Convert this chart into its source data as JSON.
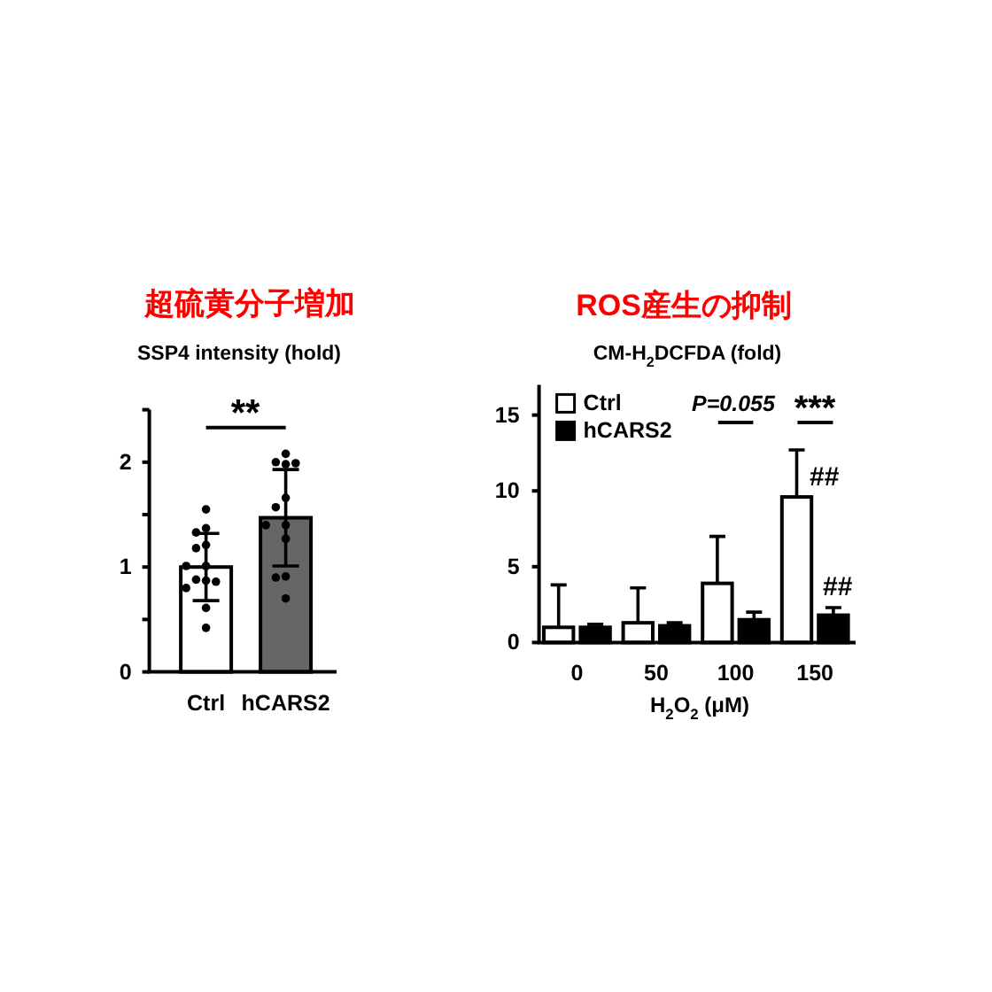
{
  "chart_data": [
    {
      "type": "bar",
      "title": "超硫黄分子増加",
      "ylabel": "SSP4 intensity (hold)",
      "categories": [
        "Ctrl",
        "hCARS2"
      ],
      "series": [
        {
          "type": "bar",
          "colors": [
            "#ffffff",
            "#666666"
          ],
          "values": [
            1.0,
            1.47
          ],
          "errors": [
            0.32,
            0.46
          ]
        },
        {
          "type": "scatter",
          "color": "#000000",
          "x": [
            "Ctrl",
            "Ctrl",
            "Ctrl",
            "Ctrl",
            "Ctrl",
            "Ctrl",
            "Ctrl",
            "Ctrl",
            "Ctrl",
            "Ctrl",
            "Ctrl",
            "Ctrl",
            "Ctrl",
            "hCARS2",
            "hCARS2",
            "hCARS2",
            "hCARS2",
            "hCARS2",
            "hCARS2",
            "hCARS2",
            "hCARS2",
            "hCARS2",
            "hCARS2",
            "hCARS2",
            "hCARS2"
          ],
          "values": [
            1.55,
            1.37,
            1.33,
            1.21,
            1.18,
            1.01,
            1.01,
            0.87,
            0.88,
            0.86,
            0.8,
            0.61,
            0.42,
            2.08,
            2.0,
            1.99,
            1.98,
            1.66,
            1.57,
            1.4,
            1.4,
            1.27,
            0.91,
            0.9,
            0.7
          ]
        }
      ],
      "ylim": [
        0,
        2.5
      ],
      "yticks": [
        0,
        {
          "value": 0.5,
          "label": null
        },
        1,
        {
          "value": 1.5,
          "label": null
        },
        2,
        {
          "value": 2.5,
          "label": null
        }
      ],
      "annotations": [
        "**"
      ]
    },
    {
      "type": "bar",
      "title": "ROS産生の抑制",
      "ylabel": "CM-H$_{2}$DCFDA (fold)",
      "xlabel": "H$_{2}$O$_{2}$ (μM)",
      "categories": [
        "0",
        "50",
        "100",
        "150"
      ],
      "series": [
        {
          "name": "Ctrl",
          "color": "#ffffff",
          "values": [
            1.0,
            1.3,
            3.9,
            9.6
          ],
          "errors": [
            [
              1.0,
              3.8
            ],
            [
              1.3,
              3.6
            ],
            [
              3.9,
              7.0
            ],
            [
              9.6,
              12.7
            ]
          ]
        },
        {
          "name": "hCARS2",
          "color": "#000000",
          "values": [
            1.0,
            1.1,
            1.5,
            1.8
          ],
          "errors": [
            [
              1.0,
              1.2
            ],
            [
              1.1,
              1.3
            ],
            [
              1.5,
              2.0
            ],
            [
              1.8,
              2.3
            ]
          ]
        }
      ],
      "ylim": [
        0,
        17
      ],
      "yticks": [
        0,
        5,
        10,
        15
      ],
      "legend": "top left",
      "annotations": [
        "P=0.055",
        "***",
        "##",
        "##"
      ]
    }
  ]
}
